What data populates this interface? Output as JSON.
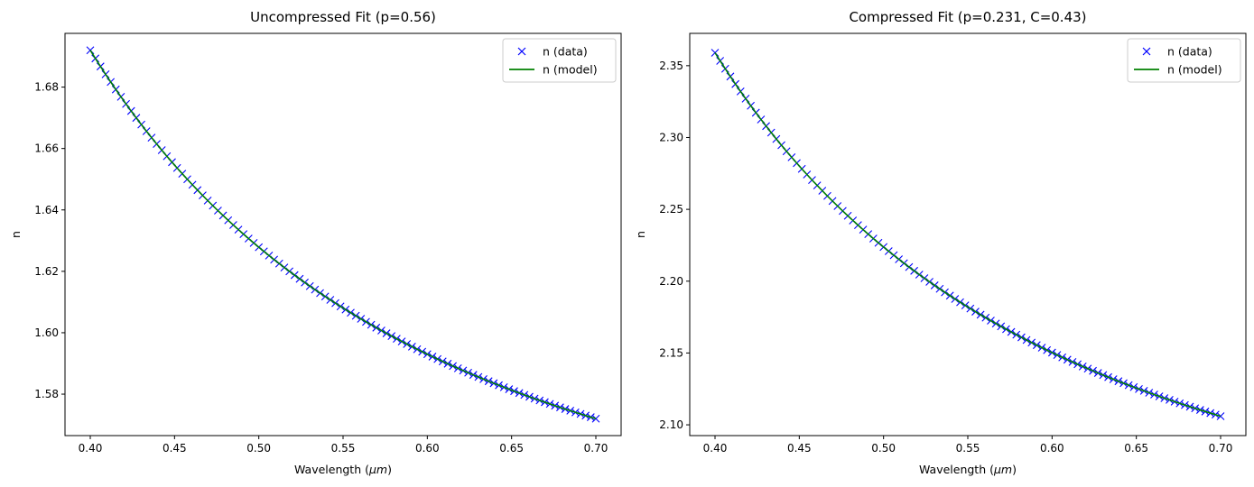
{
  "chart_data": [
    {
      "type": "line",
      "title": "Uncompressed Fit (p=0.56)",
      "xlabel": "Wavelength (",
      "xlabel_math": "μm",
      "xlabel_suffix": ")",
      "ylabel": "n",
      "xlim": [
        0.385,
        0.715
      ],
      "ylim": [
        1.5665,
        1.6975
      ],
      "xticks": [
        0.4,
        0.45,
        0.5,
        0.55,
        0.6,
        0.65,
        0.7
      ],
      "xtick_labels": [
        "0.40",
        "0.45",
        "0.50",
        "0.55",
        "0.60",
        "0.65",
        "0.70"
      ],
      "yticks": [
        1.58,
        1.6,
        1.62,
        1.64,
        1.66,
        1.68
      ],
      "ytick_labels": [
        "1.58",
        "1.60",
        "1.62",
        "1.64",
        "1.66",
        "1.68"
      ],
      "x_range": [
        0.4,
        0.7
      ],
      "n_points": 100,
      "curve_model": "y = A + B / x^2",
      "endpoints": {
        "x": [
          0.4,
          0.7
        ],
        "y": [
          1.692,
          1.572
        ]
      },
      "series": [
        {
          "name": "n (data)",
          "style": "marker-x",
          "color": "#0000ff"
        },
        {
          "name": "n (model)",
          "style": "line",
          "color": "#008000"
        }
      ],
      "legend": "upper-right",
      "grid": false
    },
    {
      "type": "line",
      "title": "Compressed Fit (p=0.231, C=0.43)",
      "xlabel": "Wavelength (",
      "xlabel_math": "μm",
      "xlabel_suffix": ")",
      "ylabel": "n",
      "xlim": [
        0.385,
        0.715
      ],
      "ylim": [
        2.0925,
        2.3725
      ],
      "xticks": [
        0.4,
        0.45,
        0.5,
        0.55,
        0.6,
        0.65,
        0.7
      ],
      "xtick_labels": [
        "0.40",
        "0.45",
        "0.50",
        "0.55",
        "0.60",
        "0.65",
        "0.70"
      ],
      "yticks": [
        2.1,
        2.15,
        2.2,
        2.25,
        2.3,
        2.35
      ],
      "ytick_labels": [
        "2.10",
        "2.15",
        "2.20",
        "2.25",
        "2.30",
        "2.35"
      ],
      "x_range": [
        0.4,
        0.7
      ],
      "n_points": 100,
      "curve_model": "y = A + B / x^2",
      "endpoints": {
        "x": [
          0.4,
          0.7
        ],
        "y": [
          2.359,
          2.106
        ]
      },
      "series": [
        {
          "name": "n (data)",
          "style": "marker-x",
          "color": "#0000ff"
        },
        {
          "name": "n (model)",
          "style": "line",
          "color": "#008000"
        }
      ],
      "legend": "upper-right",
      "grid": false
    }
  ]
}
